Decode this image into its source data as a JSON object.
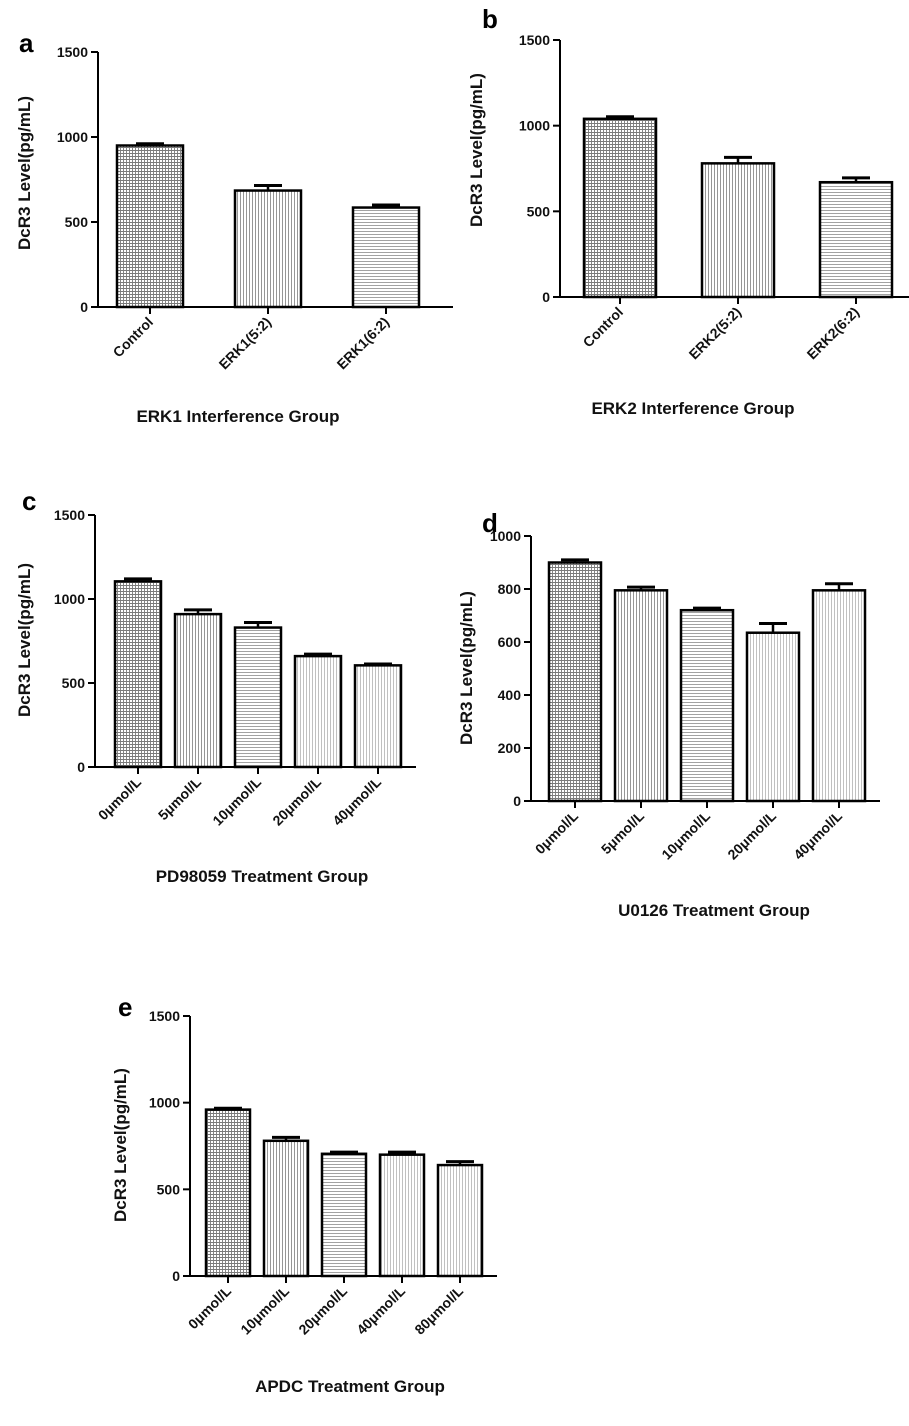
{
  "figure_panels": [
    "a",
    "b",
    "c",
    "d",
    "e"
  ],
  "chart_data": [
    {
      "panel": "a",
      "type": "bar",
      "categories": [
        "Control",
        "ERK1(5:2)",
        "ERK1(6:2)"
      ],
      "values": [
        950,
        685,
        585
      ],
      "errors": [
        10,
        30,
        15
      ],
      "xlabel": "ERK1 Interference Group",
      "ylabel": "DcR3 Level(pg/mL)",
      "ylim": [
        0,
        1500
      ],
      "yticks": [
        0,
        500,
        1000,
        1500
      ],
      "grid": false,
      "legend": "none"
    },
    {
      "panel": "b",
      "type": "bar",
      "categories": [
        "Control",
        "ERK2(5:2)",
        "ERK2(6:2)"
      ],
      "values": [
        1040,
        780,
        670
      ],
      "errors": [
        12,
        35,
        25
      ],
      "xlabel": "ERK2 Interference Group",
      "ylabel": "DcR3 Level(pg/mL)",
      "ylim": [
        0,
        1500
      ],
      "yticks": [
        0,
        500,
        1000,
        1500
      ],
      "grid": false,
      "legend": "none"
    },
    {
      "panel": "c",
      "type": "bar",
      "categories": [
        "0μmol/L",
        "5μmol/L",
        "10μmol/L",
        "20μmol/L",
        "40μmol/L"
      ],
      "values": [
        1105,
        910,
        830,
        660,
        605
      ],
      "errors": [
        15,
        25,
        30,
        12,
        8
      ],
      "xlabel": "PD98059 Treatment Group",
      "ylabel": "DcR3 Level(pg/mL)",
      "ylim": [
        0,
        1500
      ],
      "yticks": [
        0,
        500,
        1000,
        1500
      ],
      "grid": false,
      "legend": "none"
    },
    {
      "panel": "d",
      "type": "bar",
      "categories": [
        "0μmol/L",
        "5μmol/L",
        "10μmol/L",
        "20μmol/L",
        "40μmol/L"
      ],
      "values": [
        900,
        795,
        720,
        635,
        795
      ],
      "errors": [
        10,
        12,
        8,
        35,
        25
      ],
      "xlabel": "U0126 Treatment Group",
      "ylabel": "DcR3 Level(pg/mL)",
      "ylim": [
        0,
        1000
      ],
      "yticks": [
        0,
        200,
        400,
        600,
        800,
        1000
      ],
      "grid": false,
      "legend": "none"
    },
    {
      "panel": "e",
      "type": "bar",
      "categories": [
        "0μmol/L",
        "10μmol/L",
        "20μmol/L",
        "40μmol/L",
        "80μmol/L"
      ],
      "values": [
        960,
        780,
        705,
        700,
        640
      ],
      "errors": [
        8,
        20,
        10,
        15,
        20
      ],
      "xlabel": "APDC Treatment Group",
      "ylabel": "DcR3 Level(pg/mL)",
      "ylim": [
        0,
        1500
      ],
      "yticks": [
        0,
        500,
        1000,
        1500
      ],
      "grid": false,
      "legend": "none"
    }
  ]
}
